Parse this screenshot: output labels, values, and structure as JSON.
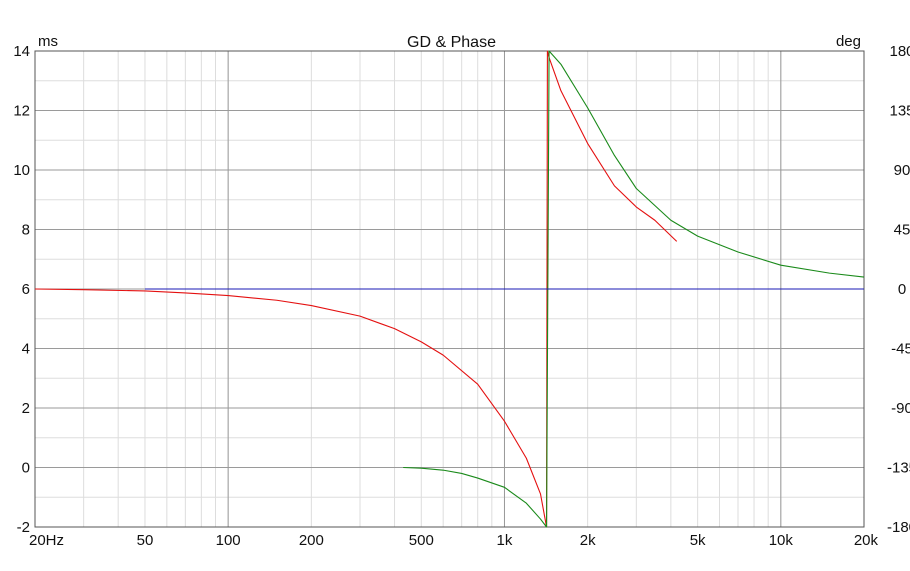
{
  "chart_data": {
    "type": "line",
    "title": "GD & Phase",
    "xlabel": "",
    "ylabel": "ms",
    "y2label": "deg",
    "xscale": "log",
    "xlim": [
      20,
      20000
    ],
    "ylim": [
      -2,
      14
    ],
    "y2lim": [
      -180,
      180
    ],
    "grid": true,
    "x_ticks": [
      {
        "value": 20,
        "label": "20Hz"
      },
      {
        "value": 50,
        "label": "50"
      },
      {
        "value": 100,
        "label": "100"
      },
      {
        "value": 200,
        "label": "200"
      },
      {
        "value": 500,
        "label": "500"
      },
      {
        "value": 1000,
        "label": "1k"
      },
      {
        "value": 2000,
        "label": "2k"
      },
      {
        "value": 5000,
        "label": "5k"
      },
      {
        "value": 10000,
        "label": "10k"
      },
      {
        "value": 20000,
        "label": "20k"
      }
    ],
    "y_ticks": [
      {
        "value": -2,
        "label": "-2"
      },
      {
        "value": 0,
        "label": "0"
      },
      {
        "value": 2,
        "label": "2"
      },
      {
        "value": 4,
        "label": "4"
      },
      {
        "value": 6,
        "label": "6"
      },
      {
        "value": 8,
        "label": "8"
      },
      {
        "value": 10,
        "label": "10"
      },
      {
        "value": 12,
        "label": "12"
      },
      {
        "value": 14,
        "label": "14"
      }
    ],
    "y2_ticks": [
      {
        "value": -180,
        "label": "-180"
      },
      {
        "value": -135,
        "label": "-135"
      },
      {
        "value": -90,
        "label": "-90"
      },
      {
        "value": -45,
        "label": "-45"
      },
      {
        "value": 0,
        "label": "0"
      },
      {
        "value": 45,
        "label": "45"
      },
      {
        "value": 90,
        "label": "90"
      },
      {
        "value": 135,
        "label": "135"
      },
      {
        "value": 180,
        "label": "180"
      }
    ],
    "series": [
      {
        "color": "#e41010",
        "axis": "y2",
        "x": [
          20,
          30,
          50,
          70,
          100,
          150,
          200,
          300,
          400,
          500,
          600,
          800,
          1000,
          1200,
          1350,
          1420,
          1430,
          1450,
          1600,
          2000,
          2500,
          3000,
          3500,
          4200
        ],
        "y": [
          0,
          -0.5,
          -1.5,
          -3,
          -5,
          -8.5,
          -12.5,
          -20.5,
          -30,
          -40,
          -50,
          -72,
          -100,
          -128,
          -155,
          -180,
          180,
          175,
          150,
          110,
          78,
          62,
          52,
          36
        ]
      },
      {
        "color": "#1a8a1a",
        "axis": "y2",
        "x": [
          430,
          500,
          600,
          700,
          800,
          1000,
          1200,
          1350,
          1420,
          1450,
          1600,
          2000,
          2500,
          3000,
          4000,
          5000,
          7000,
          10000,
          15000,
          20000
        ],
        "y": [
          -135,
          -135.5,
          -137,
          -139.5,
          -143,
          -150,
          -162,
          -174,
          -180,
          180,
          170,
          137,
          101,
          76,
          52,
          40,
          28,
          18,
          12,
          9
        ]
      },
      {
        "color": "#1a1ab5",
        "axis": "y2",
        "x": [
          50,
          20000
        ],
        "y": [
          0,
          0
        ]
      }
    ]
  }
}
